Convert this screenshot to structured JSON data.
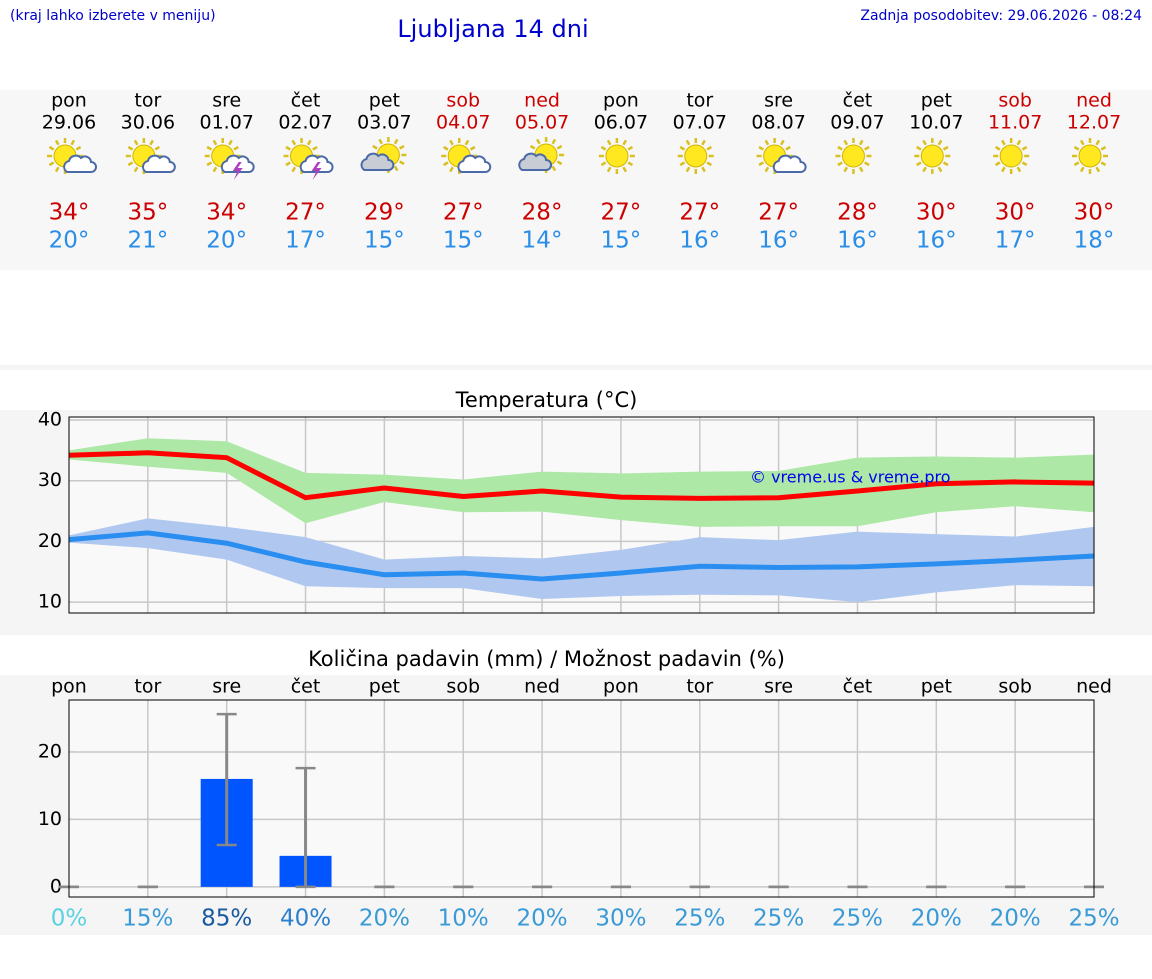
{
  "header": {
    "hint": "(kraj lahko izberete v meniju)",
    "title": "Ljubljana 14 dni",
    "updated": "Zadnja posodobitev: 29.06.2026 - 08:24"
  },
  "days": [
    {
      "day": "pon",
      "date": "29.06",
      "max": "34°",
      "min": "20°",
      "color": "#000000",
      "icon": "sun-cloud"
    },
    {
      "day": "tor",
      "date": "30.06",
      "max": "35°",
      "min": "21°",
      "color": "#000000",
      "icon": "sun-cloud"
    },
    {
      "day": "sre",
      "date": "01.07",
      "max": "34°",
      "min": "20°",
      "color": "#000000",
      "icon": "sun-storm"
    },
    {
      "day": "čet",
      "date": "02.07",
      "max": "27°",
      "min": "17°",
      "color": "#000000",
      "icon": "sun-storm"
    },
    {
      "day": "pet",
      "date": "03.07",
      "max": "29°",
      "min": "15°",
      "color": "#000000",
      "icon": "cloud-sun"
    },
    {
      "day": "sob",
      "date": "04.07",
      "max": "27°",
      "min": "15°",
      "color": "#cc0000",
      "icon": "sun-cloud"
    },
    {
      "day": "ned",
      "date": "05.07",
      "max": "28°",
      "min": "14°",
      "color": "#cc0000",
      "icon": "cloud-sun"
    },
    {
      "day": "pon",
      "date": "06.07",
      "max": "27°",
      "min": "15°",
      "color": "#000000",
      "icon": "sun"
    },
    {
      "day": "tor",
      "date": "07.07",
      "max": "27°",
      "min": "16°",
      "color": "#000000",
      "icon": "sun"
    },
    {
      "day": "sre",
      "date": "08.07",
      "max": "27°",
      "min": "16°",
      "color": "#000000",
      "icon": "sun-cloud"
    },
    {
      "day": "čet",
      "date": "09.07",
      "max": "28°",
      "min": "16°",
      "color": "#000000",
      "icon": "sun"
    },
    {
      "day": "pet",
      "date": "10.07",
      "max": "30°",
      "min": "16°",
      "color": "#000000",
      "icon": "sun"
    },
    {
      "day": "sob",
      "date": "11.07",
      "max": "30°",
      "min": "17°",
      "color": "#cc0000",
      "icon": "sun"
    },
    {
      "day": "ned",
      "date": "12.07",
      "max": "30°",
      "min": "18°",
      "color": "#cc0000",
      "icon": "sun"
    }
  ],
  "max_color": "#cc0000",
  "min_color": "#2a8ee8",
  "chart_data": [
    {
      "type": "line",
      "title": "Temperatura (°C)",
      "categories": [
        null,
        null,
        null,
        null,
        null,
        null,
        null,
        null,
        null,
        null,
        null,
        null,
        null,
        null
      ],
      "series": [
        {
          "color": "#ff0000",
          "band_color": "#aee8a6",
          "values": [
            34.2,
            34.6,
            33.8,
            27.2,
            28.8,
            27.4,
            28.3,
            27.3,
            27.1,
            27.2,
            28.3,
            29.5,
            29.8,
            29.6
          ],
          "upper": [
            35,
            37,
            36.5,
            31.3,
            31,
            30.2,
            31.5,
            31.2,
            31.5,
            31.6,
            33.8,
            34,
            33.8,
            34.3
          ],
          "lower": [
            33.5,
            32.3,
            31.3,
            23,
            26.5,
            24.8,
            24.9,
            23.5,
            22.4,
            22.5,
            22.5,
            24.8,
            25.8,
            24.8
          ]
        },
        {
          "color": "#2a8ef0",
          "band_color": "#b0c8f0",
          "values": [
            20.3,
            21.4,
            19.7,
            16.6,
            14.5,
            14.8,
            13.8,
            14.8,
            15.9,
            15.7,
            15.8,
            16.3,
            16.9,
            17.6
          ],
          "upper": [
            21,
            23.8,
            22.4,
            20.7,
            17,
            17.6,
            17.2,
            18.6,
            20.7,
            20.2,
            21.6,
            21.2,
            20.8,
            22.4
          ],
          "lower": [
            19.8,
            18.9,
            17,
            12.6,
            12.3,
            12.3,
            10.5,
            11,
            11.2,
            11.1,
            10,
            11.6,
            12.8,
            12.6
          ]
        }
      ],
      "ylim": [
        8.2,
        40.5
      ],
      "yticks": [
        10,
        20,
        30,
        40
      ],
      "grid": true,
      "annotation": "© vreme.us & vreme.pro"
    },
    {
      "type": "bar",
      "title": "Količina padavin (mm) / Možnost padavin (%)",
      "categories": [
        "pon",
        "tor",
        "sre",
        "čet",
        "pet",
        "sob",
        "ned",
        "pon",
        "tor",
        "sre",
        "čet",
        "pet",
        "sob",
        "ned"
      ],
      "values": [
        0,
        0,
        16,
        4.6,
        0,
        0,
        0,
        0,
        0,
        0,
        0,
        0,
        0,
        0
      ],
      "error_low": [
        0,
        0,
        6.2,
        0,
        0,
        0,
        0,
        0,
        0,
        0,
        0,
        0,
        0,
        0
      ],
      "error_high": [
        0,
        0,
        25.6,
        17.6,
        0,
        0,
        0,
        0,
        0,
        0,
        0,
        0,
        0,
        0
      ],
      "color": "#0055ff",
      "error_color": "#888888",
      "probability": [
        0,
        15,
        85,
        40,
        20,
        10,
        20,
        30,
        25,
        25,
        25,
        20,
        20,
        25
      ],
      "probability_labels": [
        "0%",
        "15%",
        "85%",
        "40%",
        "20%",
        "10%",
        "20%",
        "30%",
        "25%",
        "25%",
        "25%",
        "20%",
        "20%",
        "25%"
      ],
      "probability_colors": [
        "#5ad2e2",
        "#3a9ad6",
        "#1a5aa0",
        "#2a80cc",
        "#3a9ad6",
        "#3a9ad6",
        "#3a9ad6",
        "#3a9ad6",
        "#3a9ad6",
        "#3a9ad6",
        "#3a9ad6",
        "#3a9ad6",
        "#3a9ad6",
        "#3a9ad6"
      ],
      "ylim": [
        -1.5,
        27.7
      ],
      "yticks": [
        0,
        10,
        20
      ],
      "grid": true
    }
  ]
}
